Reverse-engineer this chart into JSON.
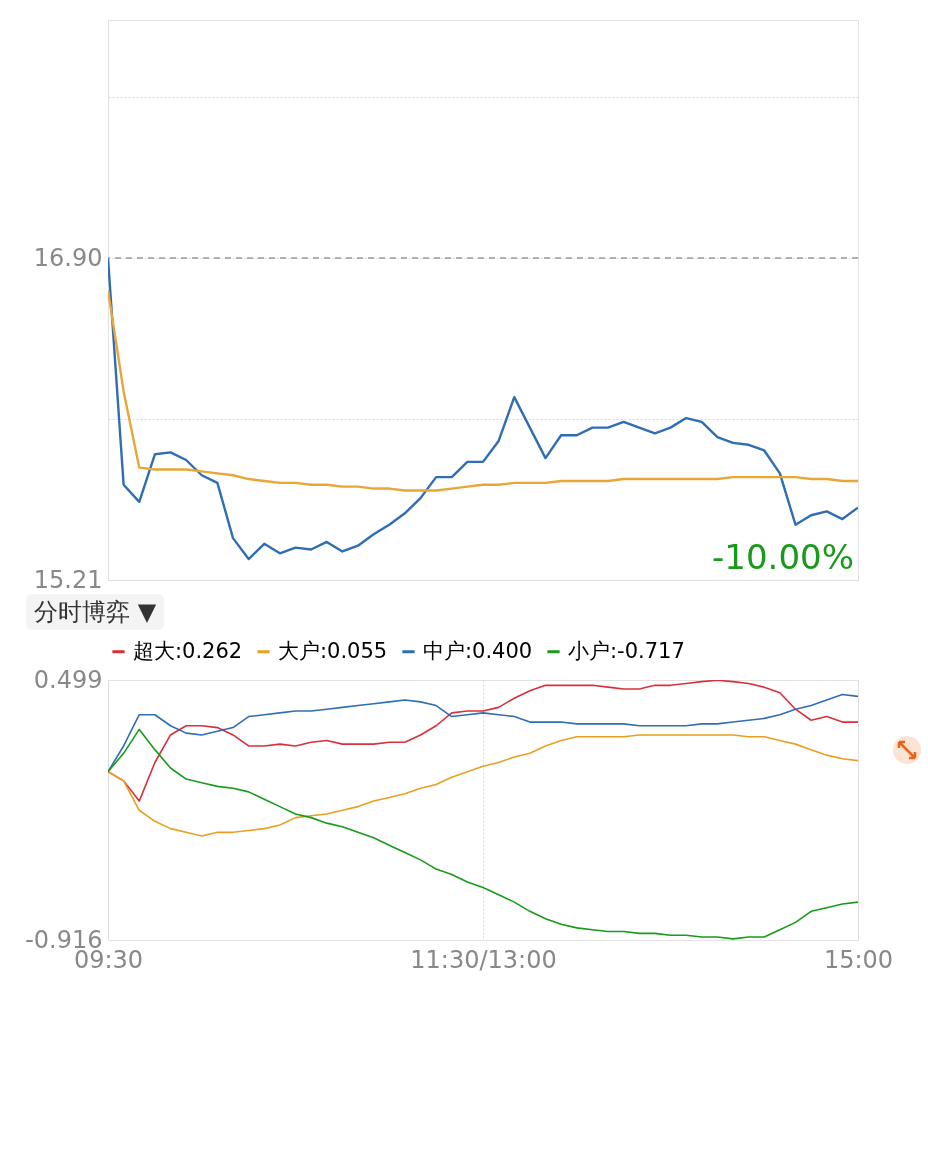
{
  "chart_data": [
    {
      "type": "line",
      "categories": [
        null,
        null,
        null,
        null,
        null,
        null,
        null,
        null,
        null,
        null,
        null,
        null,
        null,
        null,
        null,
        null,
        null,
        null,
        null,
        null,
        null,
        null,
        null,
        null,
        null,
        null,
        null,
        null,
        null,
        null,
        null,
        null,
        null,
        null,
        null,
        null,
        null,
        null,
        null,
        null,
        null,
        null,
        null,
        null,
        null,
        null,
        null,
        null,
        null
      ],
      "ylim": [
        15.21,
        18.15
      ],
      "yticks": [
        15.21,
        {
          "value": 16.0555,
          "label": null
        },
        {
          "value": 16.9,
          "label": "16.90"
        },
        {
          "value": 17.745,
          "label": null
        }
      ],
      "tick_labels": "y",
      "grid": "y",
      "annotations": [
        "-10.00%"
      ],
      "ref_lines": [
        {
          "axis": "y",
          "value": 16.9,
          "color": "#999999",
          "line_style": "dashed"
        }
      ],
      "series": [
        {
          "color": "#2f6db5",
          "values": [
            16.9,
            15.71,
            15.62,
            15.87,
            15.88,
            15.84,
            15.76,
            15.72,
            15.43,
            15.32,
            15.4,
            15.35,
            15.38,
            15.37,
            15.41,
            15.36,
            15.39,
            15.45,
            15.5,
            15.56,
            15.64,
            15.75,
            15.75,
            15.83,
            15.83,
            15.94,
            16.17,
            16.01,
            15.85,
            15.97,
            15.97,
            16.01,
            16.01,
            16.04,
            16.01,
            15.98,
            16.01,
            16.06,
            16.04,
            15.96,
            15.93,
            15.92,
            15.89,
            15.77,
            15.5,
            15.55,
            15.57,
            15.53,
            15.59
          ]
        },
        {
          "color": "#e8a634",
          "values": [
            16.73,
            16.2,
            15.8,
            15.79,
            15.79,
            15.79,
            15.78,
            15.77,
            15.76,
            15.74,
            15.73,
            15.72,
            15.72,
            15.71,
            15.71,
            15.7,
            15.7,
            15.69,
            15.69,
            15.68,
            15.68,
            15.68,
            15.69,
            15.7,
            15.71,
            15.71,
            15.72,
            15.72,
            15.72,
            15.73,
            15.73,
            15.73,
            15.73,
            15.74,
            15.74,
            15.74,
            15.74,
            15.74,
            15.74,
            15.74,
            15.75,
            15.75,
            15.75,
            15.75,
            15.75,
            15.74,
            15.74,
            15.73,
            15.73
          ]
        }
      ]
    },
    {
      "type": "line",
      "title": "分时博弈 ▼",
      "categories": [
        "09:30",
        null,
        null,
        null,
        null,
        null,
        null,
        null,
        null,
        null,
        null,
        null,
        null,
        null,
        null,
        null,
        null,
        null,
        null,
        null,
        null,
        null,
        null,
        null,
        "11:30/13:00",
        null,
        null,
        null,
        null,
        null,
        null,
        null,
        null,
        null,
        null,
        null,
        null,
        null,
        null,
        null,
        null,
        null,
        null,
        null,
        null,
        null,
        null,
        null,
        "15:00"
      ],
      "ylim": [
        -0.916,
        0.499
      ],
      "yticks": [
        -0.916,
        0.499
      ],
      "grid": "x",
      "legend": "top",
      "series": [
        {
          "name": "超大:0.262",
          "color": "#d8303a",
          "values": [
            0,
            -0.05,
            -0.16,
            0.05,
            0.2,
            0.25,
            0.25,
            0.24,
            0.2,
            0.14,
            0.14,
            0.15,
            0.14,
            0.16,
            0.17,
            0.15,
            0.15,
            0.15,
            0.16,
            0.16,
            0.2,
            0.25,
            0.32,
            0.33,
            0.33,
            0.35,
            0.4,
            0.44,
            0.47,
            0.47,
            0.47,
            0.47,
            0.46,
            0.45,
            0.45,
            0.47,
            0.47,
            0.48,
            0.49,
            0.498,
            0.49,
            0.48,
            0.46,
            0.43,
            0.34,
            0.28,
            0.3,
            0.27,
            0.27
          ]
        },
        {
          "name": "大户:0.055",
          "color": "#e8a020",
          "values": [
            0,
            -0.05,
            -0.21,
            -0.27,
            -0.31,
            -0.33,
            -0.35,
            -0.33,
            -0.33,
            -0.32,
            -0.31,
            -0.29,
            -0.25,
            -0.24,
            -0.23,
            -0.21,
            -0.19,
            -0.16,
            -0.14,
            -0.12,
            -0.09,
            -0.07,
            -0.03,
            0,
            0.03,
            0.05,
            0.08,
            0.1,
            0.14,
            0.17,
            0.19,
            0.19,
            0.19,
            0.19,
            0.2,
            0.2,
            0.2,
            0.2,
            0.2,
            0.2,
            0.2,
            0.19,
            0.19,
            0.17,
            0.15,
            0.12,
            0.09,
            0.07,
            0.06
          ]
        },
        {
          "name": "中户:0.400",
          "color": "#2f6db5",
          "values": [
            0,
            0.14,
            0.31,
            0.31,
            0.25,
            0.21,
            0.2,
            0.22,
            0.24,
            0.3,
            0.31,
            0.32,
            0.33,
            0.33,
            0.34,
            0.35,
            0.36,
            0.37,
            0.38,
            0.39,
            0.38,
            0.36,
            0.3,
            0.31,
            0.32,
            0.31,
            0.3,
            0.27,
            0.27,
            0.27,
            0.26,
            0.26,
            0.26,
            0.26,
            0.25,
            0.25,
            0.25,
            0.25,
            0.26,
            0.26,
            0.27,
            0.28,
            0.29,
            0.31,
            0.34,
            0.36,
            0.39,
            0.42,
            0.41
          ]
        },
        {
          "name": "小户:-0.717",
          "color": "#1a9a1a",
          "values": [
            0,
            0.1,
            0.23,
            0.12,
            0.02,
            -0.04,
            -0.06,
            -0.08,
            -0.09,
            -0.11,
            -0.15,
            -0.19,
            -0.23,
            -0.25,
            -0.28,
            -0.3,
            -0.33,
            -0.36,
            -0.4,
            -0.44,
            -0.48,
            -0.53,
            -0.56,
            -0.6,
            -0.63,
            -0.67,
            -0.71,
            -0.76,
            -0.8,
            -0.83,
            -0.85,
            -0.86,
            -0.87,
            -0.87,
            -0.88,
            -0.88,
            -0.89,
            -0.89,
            -0.9,
            -0.9,
            -0.91,
            -0.9,
            -0.9,
            -0.86,
            -0.82,
            -0.76,
            -0.74,
            -0.72,
            -0.71
          ]
        }
      ]
    }
  ]
}
